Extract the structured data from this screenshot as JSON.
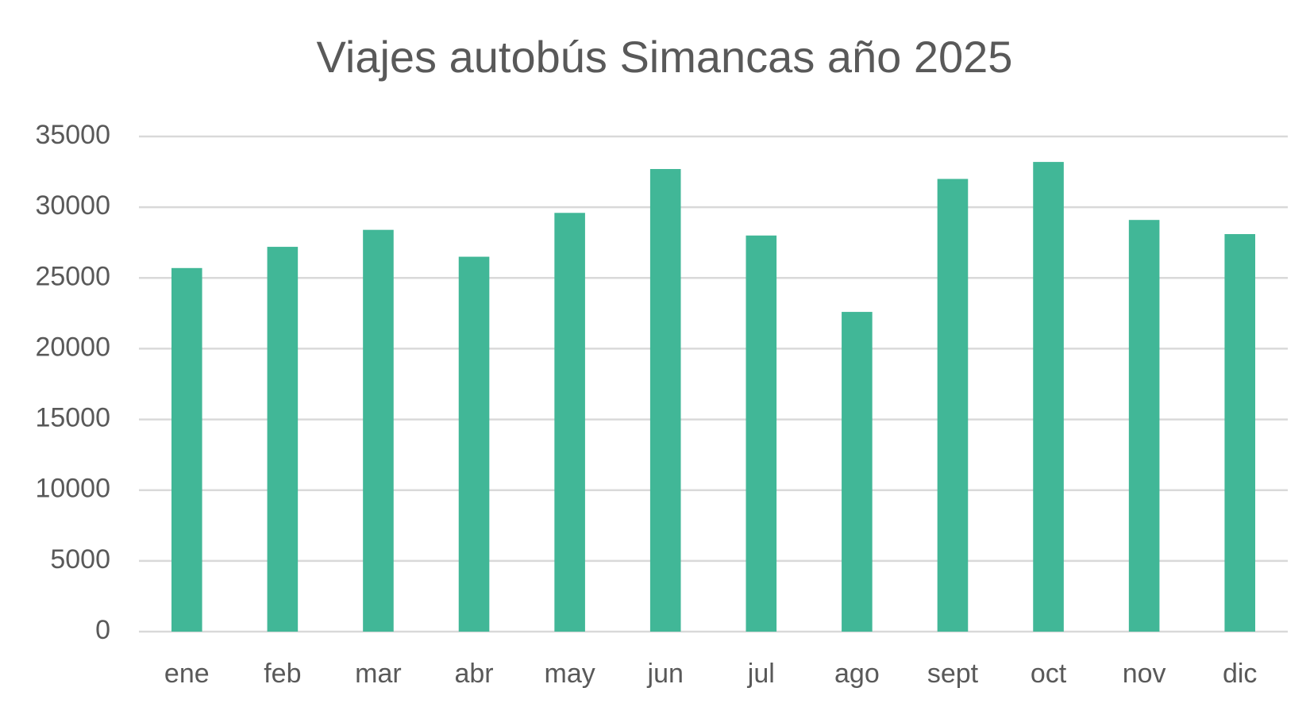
{
  "chart_data": {
    "type": "bar",
    "title": "Viajes autobús Simancas año 2025",
    "categories": [
      "ene",
      "feb",
      "mar",
      "abr",
      "may",
      "jun",
      "jul",
      "ago",
      "sept",
      "oct",
      "nov",
      "dic"
    ],
    "values": [
      25700,
      27200,
      28400,
      26500,
      29600,
      32700,
      28000,
      22600,
      32000,
      33200,
      29100,
      28100
    ],
    "color": "#41b797",
    "ylim": [
      0,
      35000
    ],
    "yticks": [
      0,
      5000,
      10000,
      15000,
      20000,
      25000,
      30000,
      35000
    ],
    "grid": true
  }
}
